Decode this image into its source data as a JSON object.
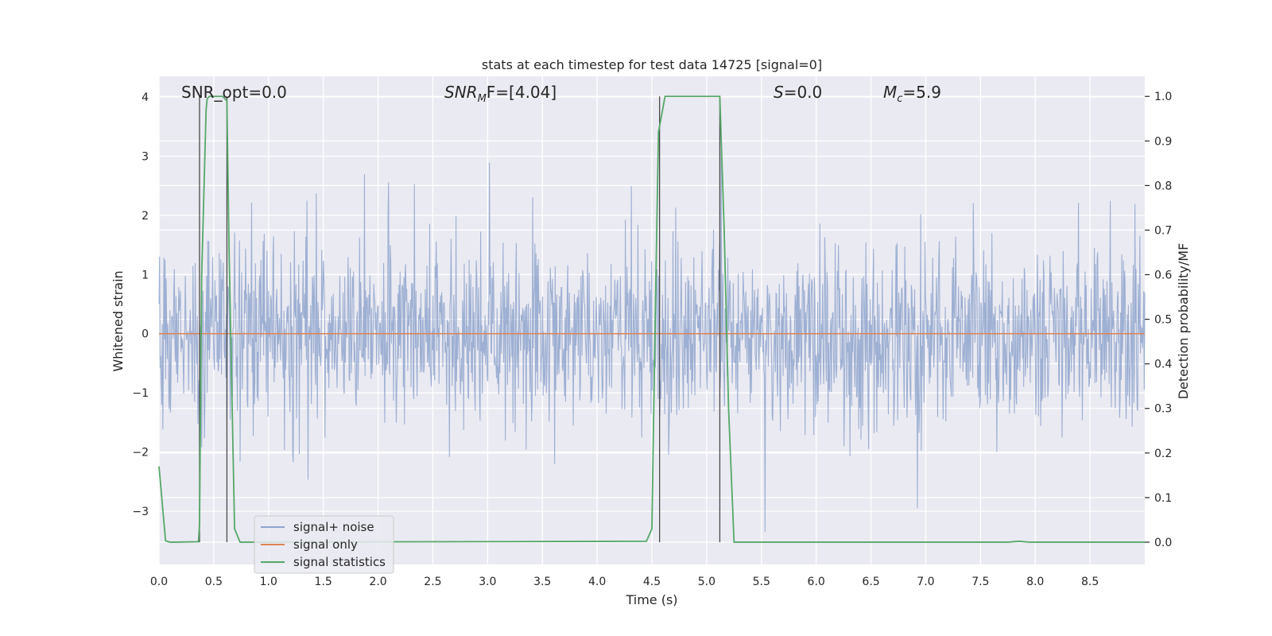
{
  "chart_data": {
    "type": "line",
    "title": "stats at each timestep for test data 14725 [signal=0]",
    "xlabel": "Time (s)",
    "ylabel": "Whitened strain",
    "y2label": "Detection probability/MF",
    "xlim": [
      0.0,
      9.0
    ],
    "ylim": [
      -3.9,
      4.35
    ],
    "y2lim": [
      -0.05,
      1.045
    ],
    "xticks": [
      0.0,
      0.5,
      1.0,
      1.5,
      2.0,
      2.5,
      3.0,
      3.5,
      4.0,
      4.5,
      5.0,
      5.5,
      6.0,
      6.5,
      7.0,
      7.5,
      8.0,
      8.5
    ],
    "xtick_labels": [
      "0.0",
      "0.5",
      "1.0",
      "1.5",
      "2.0",
      "2.5",
      "3.0",
      "3.5",
      "4.0",
      "4.5",
      "5.0",
      "5.5",
      "6.0",
      "6.5",
      "7.0",
      "7.5",
      "8.0",
      "8.5"
    ],
    "yticks": [
      4,
      3,
      2,
      1,
      0,
      -1,
      -2,
      -3
    ],
    "ytick_labels": [
      "4",
      "3",
      "2",
      "1",
      "0",
      "−1",
      "−2",
      "−3"
    ],
    "y2ticks": [
      1.0,
      0.9,
      0.8,
      0.7,
      0.6,
      0.5,
      0.4,
      0.3,
      0.2,
      0.1,
      0.0
    ],
    "y2tick_labels": [
      "1.0",
      "0.9",
      "0.8",
      "0.7",
      "0.6",
      "0.5",
      "0.4",
      "0.3",
      "0.2",
      "0.1",
      "0.0"
    ],
    "grid": true,
    "legend_placement": "lower-left",
    "annotations": {
      "snr_opt": "SNR_opt=0.0",
      "snr_mf_main": "SNR",
      "snr_mf_sub": "M",
      "snr_mf_rest": "F=[4.04]",
      "s_main": "S",
      "s_rest": "=0.0",
      "mc_main": "M",
      "mc_sub": "c",
      "mc_rest": "=5.9"
    },
    "series": [
      {
        "name": "signal+ noise",
        "color": "#8fa4cc",
        "kind": "noise",
        "amplitude_range": [
          -3.6,
          4.0
        ],
        "sample_count": 1800
      },
      {
        "name": "signal only",
        "color": "#dd8452",
        "x": [
          0.0,
          9.0
        ],
        "y": [
          0.0,
          0.0
        ]
      },
      {
        "name": "signal statistics",
        "color": "#55a868",
        "axis": "right",
        "x": [
          0.0,
          0.06,
          0.1,
          0.15,
          0.36,
          0.37,
          0.39,
          0.43,
          0.44,
          0.46,
          0.5,
          0.58,
          0.62,
          0.64,
          0.69,
          0.74,
          0.8,
          4.45,
          4.5,
          4.53,
          4.56,
          4.62,
          5.12,
          5.16,
          5.2,
          5.25,
          7.75,
          7.85,
          7.95,
          9.0
        ],
        "y": [
          0.17,
          0.003,
          0.0,
          0.0,
          0.001,
          0.04,
          0.6,
          0.97,
          0.995,
          1.0,
          1.0,
          1.0,
          0.99,
          0.65,
          0.03,
          0.0,
          0.0,
          0.002,
          0.03,
          0.5,
          0.92,
          1.0,
          1.0,
          0.7,
          0.3,
          0.0,
          0.0,
          0.002,
          0.0,
          0.0
        ]
      }
    ],
    "vertical_markers": [
      0.37,
      0.62,
      4.57,
      5.12
    ]
  }
}
